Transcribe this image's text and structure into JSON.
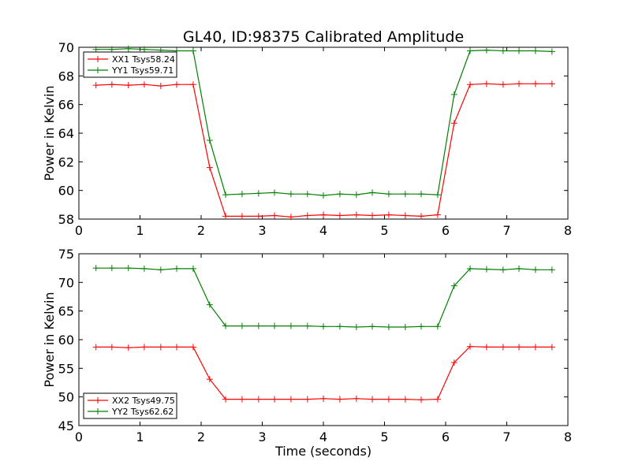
{
  "title": "GL40, ID:98375 Calibrated Amplitude",
  "chart_data": [
    {
      "type": "line",
      "title": "GL40, ID:98375 Calibrated Amplitude",
      "xlabel": "",
      "ylabel": "Power in Kelvin",
      "xlim": [
        0,
        8
      ],
      "ylim": [
        58,
        70
      ],
      "xticks": [
        "0",
        "1",
        "2",
        "3",
        "4",
        "5",
        "6",
        "7",
        "8"
      ],
      "yticks": [
        "58",
        "60",
        "62",
        "64",
        "66",
        "68",
        "70"
      ],
      "legend_position": "top-left",
      "grid": false,
      "x": [
        0.28,
        0.54,
        0.81,
        1.07,
        1.34,
        1.6,
        1.87,
        2.14,
        2.4,
        2.67,
        2.94,
        3.2,
        3.47,
        3.74,
        4.0,
        4.27,
        4.54,
        4.8,
        5.07,
        5.34,
        5.6,
        5.87,
        6.14,
        6.4,
        6.67,
        6.94,
        7.2,
        7.47,
        7.74
      ],
      "series": [
        {
          "name": "XX1 Tsys58.24",
          "color": "#ff0000",
          "values": [
            67.35,
            67.4,
            67.35,
            67.4,
            67.3,
            67.4,
            67.4,
            61.6,
            58.2,
            58.2,
            58.2,
            58.25,
            58.15,
            58.25,
            58.3,
            58.25,
            58.3,
            58.25,
            58.3,
            58.25,
            58.2,
            58.3,
            64.7,
            67.4,
            67.45,
            67.4,
            67.45,
            67.45,
            67.45
          ]
        },
        {
          "name": "YY1 Tsys59.71",
          "color": "#008000",
          "values": [
            69.85,
            69.85,
            69.9,
            69.85,
            69.8,
            69.75,
            69.75,
            63.5,
            59.7,
            59.75,
            59.8,
            59.85,
            59.75,
            59.75,
            59.65,
            59.75,
            59.7,
            59.85,
            59.75,
            59.75,
            59.75,
            59.7,
            66.7,
            69.75,
            69.8,
            69.75,
            69.75,
            69.75,
            69.7
          ]
        }
      ]
    },
    {
      "type": "line",
      "title": "",
      "xlabel": "Time (seconds)",
      "ylabel": "Power in Kelvin",
      "xlim": [
        0,
        8
      ],
      "ylim": [
        45,
        75
      ],
      "xticks": [
        "0",
        "1",
        "2",
        "3",
        "4",
        "5",
        "6",
        "7",
        "8"
      ],
      "yticks": [
        "45",
        "50",
        "55",
        "60",
        "65",
        "70",
        "75"
      ],
      "legend_position": "bottom-left",
      "grid": false,
      "x": [
        0.28,
        0.54,
        0.81,
        1.07,
        1.34,
        1.6,
        1.87,
        2.14,
        2.4,
        2.67,
        2.94,
        3.2,
        3.47,
        3.74,
        4.0,
        4.27,
        4.54,
        4.8,
        5.07,
        5.34,
        5.6,
        5.87,
        6.14,
        6.4,
        6.67,
        6.94,
        7.2,
        7.47,
        7.74
      ],
      "series": [
        {
          "name": "XX2 Tsys49.75",
          "color": "#ff0000",
          "values": [
            58.7,
            58.7,
            58.6,
            58.7,
            58.7,
            58.7,
            58.7,
            53.1,
            49.6,
            49.6,
            49.6,
            49.6,
            49.6,
            49.6,
            49.7,
            49.6,
            49.7,
            49.6,
            49.6,
            49.6,
            49.5,
            49.6,
            56.0,
            58.8,
            58.7,
            58.7,
            58.7,
            58.7,
            58.7
          ]
        },
        {
          "name": "YY2 Tsys62.62",
          "color": "#008000",
          "values": [
            72.5,
            72.5,
            72.5,
            72.4,
            72.2,
            72.4,
            72.4,
            66.1,
            62.4,
            62.4,
            62.4,
            62.4,
            62.4,
            62.4,
            62.3,
            62.3,
            62.2,
            62.3,
            62.2,
            62.2,
            62.3,
            62.3,
            69.4,
            72.4,
            72.3,
            72.2,
            72.4,
            72.2,
            72.2
          ]
        }
      ]
    }
  ]
}
